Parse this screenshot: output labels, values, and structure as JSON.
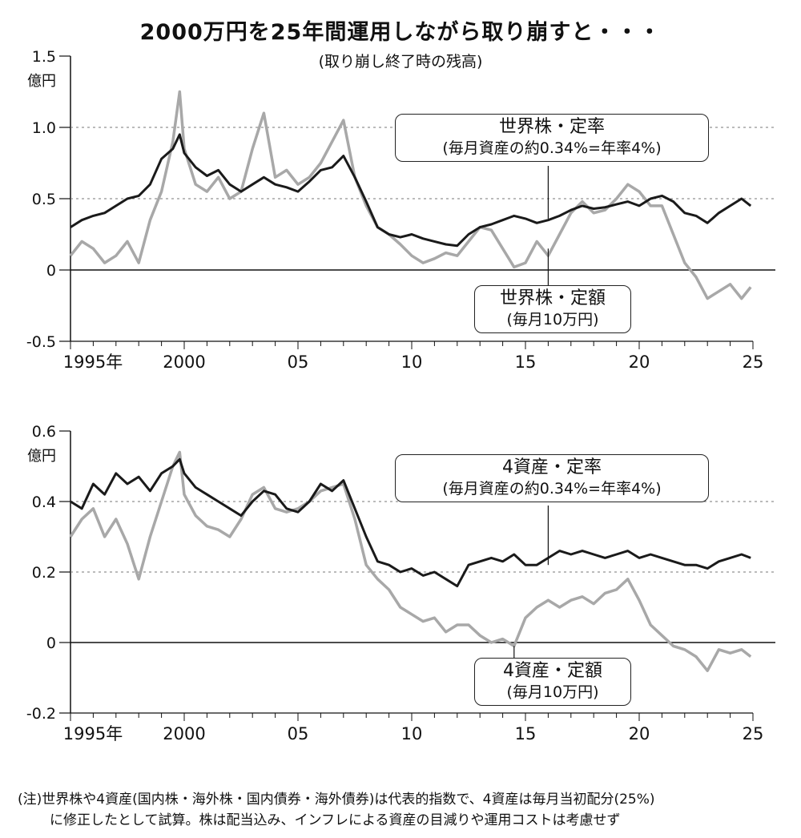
{
  "title": "2000万円を25年間運用しながら取り崩すと・・・",
  "subtitle": "(取り崩し終了時の残高)",
  "note": {
    "line1": "(注)世界株や4資産(国内株・海外株・国内債券・海外債券)は代表的指数で、4資産は毎月当初配分(25%)",
    "line2": "に修正したとして試算。株は配当込み、インフレによる資産の目減りや運用コストは考慮せず"
  },
  "colors": {
    "rate_series": "#1a1a1a",
    "amount_series": "#a8a8a8",
    "axis": "#111111",
    "gridline": "#777777"
  },
  "chart_data": [
    {
      "type": "line",
      "unit_label": "億円",
      "ylim": [
        -0.5,
        1.5
      ],
      "yticks": [
        1.5,
        1.0,
        0.5,
        0,
        -0.5
      ],
      "ytick_labels": [
        "1.5",
        "1.0",
        "0.5",
        "0",
        "-0.5"
      ],
      "xlim": [
        1995,
        2025
      ],
      "xticks": [
        1995,
        2000,
        2005,
        2010,
        2015,
        2020,
        2025
      ],
      "xtick_labels": [
        "1995年",
        "2000",
        "05",
        "10",
        "15",
        "20",
        "25"
      ],
      "series": [
        {
          "name": "世界株・定率",
          "callout_line1": "世界株・定率",
          "callout_line2": "(毎月資産の約0.34%=年率4%)",
          "style": "dark",
          "x": [
            1995.0,
            1995.5,
            1996.0,
            1996.5,
            1997.0,
            1997.5,
            1998.0,
            1998.5,
            1999.0,
            1999.5,
            1999.8,
            2000.0,
            2000.5,
            2001.0,
            2001.5,
            2002.0,
            2002.5,
            2003.0,
            2003.5,
            2004.0,
            2004.5,
            2005.0,
            2005.5,
            2006.0,
            2006.5,
            2007.0,
            2007.5,
            2008.0,
            2008.5,
            2009.0,
            2009.5,
            2010.0,
            2010.5,
            2011.0,
            2011.5,
            2012.0,
            2012.5,
            2013.0,
            2013.5,
            2014.0,
            2014.5,
            2015.0,
            2015.5,
            2016.0,
            2016.5,
            2017.0,
            2017.5,
            2018.0,
            2018.5,
            2019.0,
            2019.5,
            2020.0,
            2020.5,
            2021.0,
            2021.5,
            2022.0,
            2022.5,
            2023.0,
            2023.5,
            2024.0,
            2024.5,
            2024.9
          ],
          "y": [
            0.3,
            0.35,
            0.38,
            0.4,
            0.45,
            0.5,
            0.52,
            0.6,
            0.78,
            0.85,
            0.95,
            0.82,
            0.72,
            0.66,
            0.7,
            0.6,
            0.55,
            0.6,
            0.65,
            0.6,
            0.58,
            0.55,
            0.62,
            0.7,
            0.72,
            0.8,
            0.65,
            0.48,
            0.3,
            0.25,
            0.23,
            0.25,
            0.22,
            0.2,
            0.18,
            0.17,
            0.25,
            0.3,
            0.32,
            0.35,
            0.38,
            0.36,
            0.33,
            0.35,
            0.38,
            0.42,
            0.45,
            0.43,
            0.44,
            0.46,
            0.48,
            0.45,
            0.5,
            0.52,
            0.48,
            0.4,
            0.38,
            0.33,
            0.4,
            0.45,
            0.5,
            0.45
          ]
        },
        {
          "name": "世界株・定額",
          "callout_line1": "世界株・定額",
          "callout_line2": "(毎月10万円)",
          "style": "light",
          "x": [
            1995.0,
            1995.5,
            1996.0,
            1996.5,
            1997.0,
            1997.5,
            1998.0,
            1998.5,
            1999.0,
            1999.5,
            1999.8,
            2000.0,
            2000.5,
            2001.0,
            2001.5,
            2002.0,
            2002.5,
            2003.0,
            2003.5,
            2004.0,
            2004.5,
            2005.0,
            2005.5,
            2006.0,
            2006.5,
            2007.0,
            2007.5,
            2008.0,
            2008.5,
            2009.0,
            2009.5,
            2010.0,
            2010.5,
            2011.0,
            2011.5,
            2012.0,
            2012.5,
            2013.0,
            2013.5,
            2014.0,
            2014.5,
            2015.0,
            2015.5,
            2016.0,
            2016.5,
            2017.0,
            2017.5,
            2018.0,
            2018.5,
            2019.0,
            2019.5,
            2020.0,
            2020.5,
            2021.0,
            2021.5,
            2022.0,
            2022.5,
            2023.0,
            2023.5,
            2024.0,
            2024.5,
            2024.9
          ],
          "y": [
            0.1,
            0.2,
            0.15,
            0.05,
            0.1,
            0.2,
            0.05,
            0.35,
            0.55,
            0.9,
            1.25,
            0.85,
            0.6,
            0.55,
            0.65,
            0.5,
            0.55,
            0.85,
            1.1,
            0.65,
            0.7,
            0.6,
            0.65,
            0.75,
            0.9,
            1.05,
            0.65,
            0.45,
            0.3,
            0.25,
            0.18,
            0.1,
            0.05,
            0.08,
            0.12,
            0.1,
            0.2,
            0.3,
            0.28,
            0.15,
            0.02,
            0.05,
            0.2,
            0.1,
            0.25,
            0.4,
            0.48,
            0.4,
            0.42,
            0.5,
            0.6,
            0.55,
            0.45,
            0.45,
            0.25,
            0.05,
            -0.05,
            -0.2,
            -0.15,
            -0.1,
            -0.2,
            -0.12
          ]
        }
      ]
    },
    {
      "type": "line",
      "unit_label": "億円",
      "ylim": [
        -0.2,
        0.6
      ],
      "yticks": [
        0.6,
        0.4,
        0.2,
        0,
        -0.2
      ],
      "ytick_labels": [
        "0.6",
        "0.4",
        "0.2",
        "0",
        "-0.2"
      ],
      "xlim": [
        1995,
        2025
      ],
      "xticks": [
        1995,
        2000,
        2005,
        2010,
        2015,
        2020,
        2025
      ],
      "xtick_labels": [
        "1995年",
        "2000",
        "05",
        "10",
        "15",
        "20",
        "25"
      ],
      "series": [
        {
          "name": "4資産・定率",
          "callout_line1": "4資産・定率",
          "callout_line2": "(毎月資産の約0.34%=年率4%)",
          "style": "dark",
          "x": [
            1995.0,
            1995.5,
            1996.0,
            1996.5,
            1997.0,
            1997.5,
            1998.0,
            1998.5,
            1999.0,
            1999.5,
            1999.8,
            2000.0,
            2000.5,
            2001.0,
            2001.5,
            2002.0,
            2002.5,
            2003.0,
            2003.5,
            2004.0,
            2004.5,
            2005.0,
            2005.5,
            2006.0,
            2006.5,
            2007.0,
            2007.5,
            2008.0,
            2008.5,
            2009.0,
            2009.5,
            2010.0,
            2010.5,
            2011.0,
            2011.5,
            2012.0,
            2012.5,
            2013.0,
            2013.5,
            2014.0,
            2014.5,
            2015.0,
            2015.5,
            2016.0,
            2016.5,
            2017.0,
            2017.5,
            2018.0,
            2018.5,
            2019.0,
            2019.5,
            2020.0,
            2020.5,
            2021.0,
            2021.5,
            2022.0,
            2022.5,
            2023.0,
            2023.5,
            2024.0,
            2024.5,
            2024.9
          ],
          "y": [
            0.4,
            0.38,
            0.45,
            0.42,
            0.48,
            0.45,
            0.47,
            0.43,
            0.48,
            0.5,
            0.52,
            0.48,
            0.44,
            0.42,
            0.4,
            0.38,
            0.36,
            0.4,
            0.43,
            0.42,
            0.38,
            0.37,
            0.4,
            0.45,
            0.43,
            0.46,
            0.38,
            0.3,
            0.23,
            0.22,
            0.2,
            0.21,
            0.19,
            0.2,
            0.18,
            0.16,
            0.22,
            0.23,
            0.24,
            0.23,
            0.25,
            0.22,
            0.22,
            0.24,
            0.26,
            0.25,
            0.26,
            0.25,
            0.24,
            0.25,
            0.26,
            0.24,
            0.25,
            0.24,
            0.23,
            0.22,
            0.22,
            0.21,
            0.23,
            0.24,
            0.25,
            0.24
          ]
        },
        {
          "name": "4資産・定額",
          "callout_line1": "4資産・定額",
          "callout_line2": "(毎月10万円)",
          "style": "light",
          "x": [
            1995.0,
            1995.5,
            1996.0,
            1996.5,
            1997.0,
            1997.5,
            1998.0,
            1998.5,
            1999.0,
            1999.5,
            1999.8,
            2000.0,
            2000.5,
            2001.0,
            2001.5,
            2002.0,
            2002.5,
            2003.0,
            2003.5,
            2004.0,
            2004.5,
            2005.0,
            2005.5,
            2006.0,
            2006.5,
            2007.0,
            2007.5,
            2008.0,
            2008.5,
            2009.0,
            2009.5,
            2010.0,
            2010.5,
            2011.0,
            2011.5,
            2012.0,
            2012.5,
            2013.0,
            2013.5,
            2014.0,
            2014.5,
            2015.0,
            2015.5,
            2016.0,
            2016.5,
            2017.0,
            2017.5,
            2018.0,
            2018.5,
            2019.0,
            2019.5,
            2020.0,
            2020.5,
            2021.0,
            2021.5,
            2022.0,
            2022.5,
            2023.0,
            2023.5,
            2024.0,
            2024.5,
            2024.9
          ],
          "y": [
            0.3,
            0.35,
            0.38,
            0.3,
            0.35,
            0.28,
            0.18,
            0.3,
            0.4,
            0.5,
            0.54,
            0.42,
            0.36,
            0.33,
            0.32,
            0.3,
            0.35,
            0.42,
            0.44,
            0.38,
            0.37,
            0.38,
            0.4,
            0.43,
            0.44,
            0.45,
            0.35,
            0.22,
            0.18,
            0.15,
            0.1,
            0.08,
            0.06,
            0.07,
            0.03,
            0.05,
            0.05,
            0.02,
            0.0,
            0.01,
            -0.01,
            0.07,
            0.1,
            0.12,
            0.1,
            0.12,
            0.13,
            0.11,
            0.14,
            0.15,
            0.18,
            0.12,
            0.05,
            0.02,
            -0.01,
            -0.02,
            -0.04,
            -0.08,
            -0.02,
            -0.03,
            -0.02,
            -0.04
          ]
        }
      ]
    }
  ]
}
